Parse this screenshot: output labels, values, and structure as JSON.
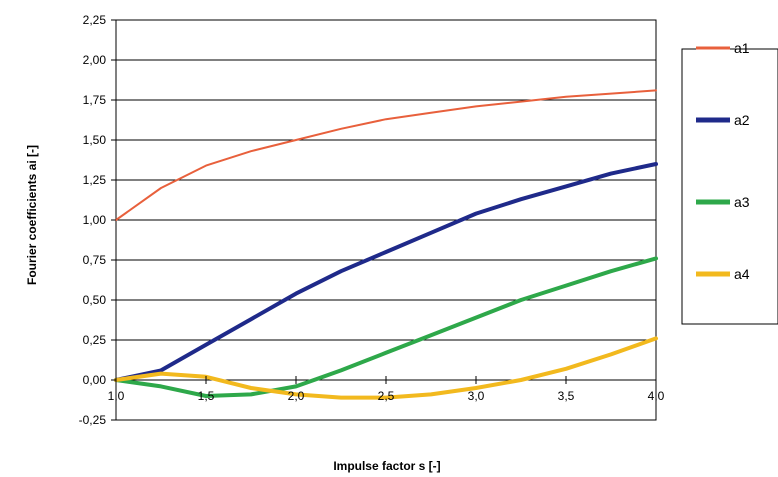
{
  "chart_data": {
    "type": "line",
    "title": "",
    "xlabel": "Impulse factor s [-]",
    "ylabel": "Fourier coefficients ai [-]",
    "xlim": [
      1.0,
      4.0
    ],
    "ylim": [
      -0.25,
      2.25
    ],
    "x_ticks": [
      1.0,
      1.5,
      2.0,
      2.5,
      3.0,
      3.5,
      4.0
    ],
    "x_tick_labels": [
      "1,0",
      "1,5",
      "2,0",
      "2,5",
      "3,0",
      "3,5",
      "4,0"
    ],
    "y_ticks": [
      -0.25,
      0.0,
      0.25,
      0.5,
      0.75,
      1.0,
      1.25,
      1.5,
      1.75,
      2.0,
      2.25
    ],
    "y_tick_labels": [
      "-0,25",
      "0,00",
      "0,25",
      "0,50",
      "0,75",
      "1,00",
      "1,25",
      "1,50",
      "1,75",
      "2,00",
      "2,25"
    ],
    "grid": true,
    "legend_position": "right",
    "x": [
      1.0,
      1.25,
      1.5,
      1.75,
      2.0,
      2.25,
      2.5,
      2.75,
      3.0,
      3.25,
      3.5,
      3.75,
      4.0
    ],
    "series": [
      {
        "name": "a1",
        "color": "#e8603c",
        "values": [
          1.0,
          1.2,
          1.34,
          1.43,
          1.5,
          1.57,
          1.63,
          1.67,
          1.71,
          1.74,
          1.77,
          1.79,
          1.81
        ]
      },
      {
        "name": "a2",
        "color": "#1f2a8a",
        "values": [
          0.0,
          0.06,
          0.22,
          0.38,
          0.54,
          0.68,
          0.8,
          0.92,
          1.04,
          1.13,
          1.21,
          1.29,
          1.35
        ]
      },
      {
        "name": "a3",
        "color": "#2ea84a",
        "values": [
          0.0,
          -0.04,
          -0.1,
          -0.09,
          -0.04,
          0.06,
          0.17,
          0.28,
          0.39,
          0.5,
          0.59,
          0.68,
          0.76
        ]
      },
      {
        "name": "a4",
        "color": "#f2b91e",
        "values": [
          0.0,
          0.04,
          0.02,
          -0.05,
          -0.09,
          -0.11,
          -0.11,
          -0.09,
          -0.05,
          0.0,
          0.07,
          0.16,
          0.26
        ]
      }
    ]
  }
}
